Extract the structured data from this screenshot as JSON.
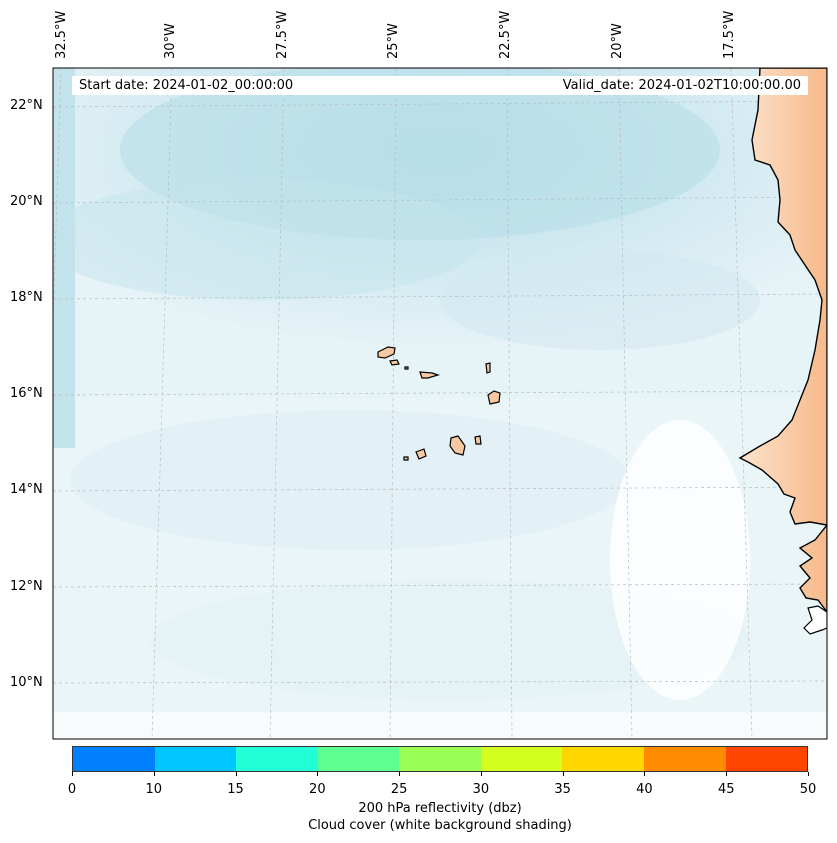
{
  "map": {
    "header": {
      "start_label": "Start date: 2024-01-02_00:00:00",
      "valid_label": "Valid_date: 2024-01-02T10:00:00.00"
    },
    "lon_labels": [
      "32.5°W",
      "30°W",
      "27.5°W",
      "25°W",
      "22.5°W",
      "20°W",
      "17.5°W"
    ],
    "lat_labels": [
      "22°N",
      "20°N",
      "18°N",
      "16°N",
      "14°N",
      "12°N",
      "10°N"
    ],
    "colors": {
      "ocean_cloud": "#d7edf3",
      "cloud_dense": "#add8e6",
      "land": "#f7c9a2",
      "coast": "#000000",
      "grid": "#bbbbbb"
    }
  },
  "colorbar": {
    "ticks": [
      "0",
      "10",
      "15",
      "20",
      "25",
      "30",
      "35",
      "40",
      "45",
      "50"
    ],
    "colors": [
      "#0080ff",
      "#00c6ff",
      "#22ffd6",
      "#5dff8e",
      "#99ff55",
      "#d4ff1e",
      "#ffd700",
      "#ff8c00",
      "#ff4500"
    ],
    "label_line1": "200 hPa reflectivity (dbz)",
    "label_line2": "Cloud cover (white background shading)"
  }
}
